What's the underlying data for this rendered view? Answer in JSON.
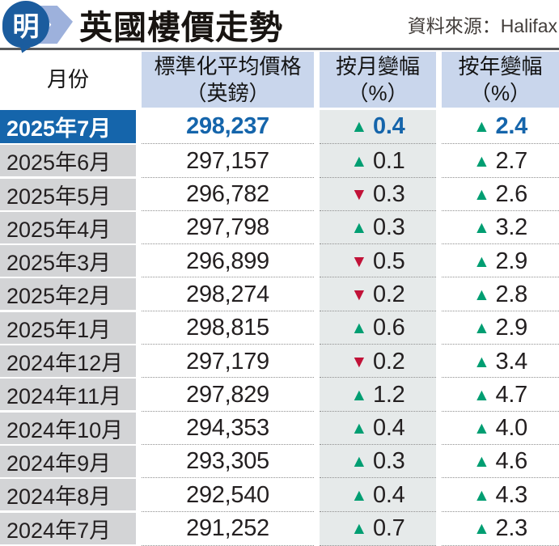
{
  "masthead": {
    "logo_glyph": "明",
    "title": "英國樓價走勢",
    "source": "資料來源：Halifax"
  },
  "icons": {
    "up": "▲",
    "down": "▼"
  },
  "colors": {
    "highlight_bg": "#1565ab",
    "accent_blue": "#1565ab",
    "green": "#009e72",
    "red": "#c11238",
    "header_bg": "#c9d6ec",
    "month_bg": "#d3d4d6",
    "mom_bg": "#e6eaea",
    "rule": "#58595b",
    "dot": "#8f8f8f",
    "text": "#231f20",
    "source_text": "#423d3a",
    "title_text": "#181411",
    "logo_dark": "#1b5c9e",
    "logo_light": "#9db1dc"
  },
  "table": {
    "columns": [
      {
        "line1": "月份",
        "line2": ""
      },
      {
        "line1": "標準化平均價格",
        "line2": "（英鎊）"
      },
      {
        "line1": "按月變幅",
        "line2": "（%）"
      },
      {
        "line1": "按年變幅",
        "line2": "（%）"
      }
    ],
    "rows": [
      {
        "month": "2025年7月",
        "price": "298,237",
        "mom": {
          "dir": "up",
          "value": "0.4"
        },
        "yoy": {
          "dir": "up",
          "value": "2.4"
        },
        "highlight": true
      },
      {
        "month": "2025年6月",
        "price": "297,157",
        "mom": {
          "dir": "up",
          "value": "0.1"
        },
        "yoy": {
          "dir": "up",
          "value": "2.7"
        },
        "highlight": false
      },
      {
        "month": "2025年5月",
        "price": "296,782",
        "mom": {
          "dir": "down",
          "value": "0.3"
        },
        "yoy": {
          "dir": "up",
          "value": "2.6"
        },
        "highlight": false
      },
      {
        "month": "2025年4月",
        "price": "297,798",
        "mom": {
          "dir": "up",
          "value": "0.3"
        },
        "yoy": {
          "dir": "up",
          "value": "3.2"
        },
        "highlight": false
      },
      {
        "month": "2025年3月",
        "price": "296,899",
        "mom": {
          "dir": "down",
          "value": "0.5"
        },
        "yoy": {
          "dir": "up",
          "value": "2.9"
        },
        "highlight": false
      },
      {
        "month": "2025年2月",
        "price": "298,274",
        "mom": {
          "dir": "down",
          "value": "0.2"
        },
        "yoy": {
          "dir": "up",
          "value": "2.8"
        },
        "highlight": false
      },
      {
        "month": "2025年1月",
        "price": "298,815",
        "mom": {
          "dir": "up",
          "value": "0.6"
        },
        "yoy": {
          "dir": "up",
          "value": "2.9"
        },
        "highlight": false
      },
      {
        "month": "2024年12月",
        "price": "297,179",
        "mom": {
          "dir": "down",
          "value": "0.2"
        },
        "yoy": {
          "dir": "up",
          "value": "3.4"
        },
        "highlight": false
      },
      {
        "month": "2024年11月",
        "price": "297,829",
        "mom": {
          "dir": "up",
          "value": "1.2"
        },
        "yoy": {
          "dir": "up",
          "value": "4.7"
        },
        "highlight": false
      },
      {
        "month": "2024年10月",
        "price": "294,353",
        "mom": {
          "dir": "up",
          "value": "0.4"
        },
        "yoy": {
          "dir": "up",
          "value": "4.0"
        },
        "highlight": false
      },
      {
        "month": "2024年9月",
        "price": "293,305",
        "mom": {
          "dir": "up",
          "value": "0.3"
        },
        "yoy": {
          "dir": "up",
          "value": "4.6"
        },
        "highlight": false
      },
      {
        "month": "2024年8月",
        "price": "292,540",
        "mom": {
          "dir": "up",
          "value": "0.4"
        },
        "yoy": {
          "dir": "up",
          "value": "4.3"
        },
        "highlight": false
      },
      {
        "month": "2024年7月",
        "price": "291,252",
        "mom": {
          "dir": "up",
          "value": "0.7"
        },
        "yoy": {
          "dir": "up",
          "value": "2.3"
        },
        "highlight": false
      }
    ]
  },
  "chart_data": {
    "type": "table",
    "title": "英國樓價走勢",
    "source": "資料來源：Halifax",
    "columns": [
      "月份",
      "標準化平均價格（英鎊）",
      "按月變幅（%）",
      "按年變幅（%）"
    ],
    "rows": [
      [
        "2025年7月",
        298237,
        0.4,
        2.4
      ],
      [
        "2025年6月",
        297157,
        0.1,
        2.7
      ],
      [
        "2025年5月",
        296782,
        -0.3,
        2.6
      ],
      [
        "2025年4月",
        297798,
        0.3,
        3.2
      ],
      [
        "2025年3月",
        296899,
        -0.5,
        2.9
      ],
      [
        "2025年2月",
        298274,
        -0.2,
        2.8
      ],
      [
        "2025年1月",
        298815,
        0.6,
        2.9
      ],
      [
        "2024年12月",
        297179,
        -0.2,
        3.4
      ],
      [
        "2024年11月",
        297829,
        1.2,
        4.7
      ],
      [
        "2024年10月",
        294353,
        0.4,
        4.0
      ],
      [
        "2024年9月",
        293305,
        0.3,
        4.6
      ],
      [
        "2024年8月",
        292540,
        0.4,
        4.3
      ],
      [
        "2024年7月",
        291252,
        0.7,
        2.3
      ]
    ],
    "highlighted_row": "2025年7月"
  }
}
